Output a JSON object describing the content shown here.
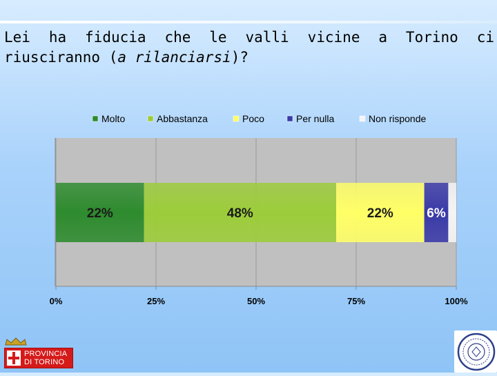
{
  "slide": {
    "title_part1": "Lei ha fiducia che le valli vicine a Torino ci riusciranno (",
    "title_italic": "a rilanciarsi",
    "title_part2": ")?"
  },
  "logo": {
    "line1": "PROVINCIA",
    "line2": "DI TORINO"
  },
  "chart_data": {
    "type": "bar",
    "orientation": "horizontal-stacked-100",
    "title": "",
    "xlabel": "",
    "ylabel": "",
    "xlim": [
      0,
      100
    ],
    "x_ticks": [
      "0%",
      "25%",
      "50%",
      "75%",
      "100%"
    ],
    "x_tick_values": [
      0,
      25,
      50,
      75,
      100
    ],
    "legend_position": "top",
    "grid": true,
    "categories": [
      ""
    ],
    "series": [
      {
        "name": "Molto",
        "values": [
          22
        ],
        "label": "22%",
        "color": "#2e8b2e"
      },
      {
        "name": "Abbastanza",
        "values": [
          48
        ],
        "label": "48%",
        "color": "#9ccc3a"
      },
      {
        "name": "Poco",
        "values": [
          22
        ],
        "label": "22%",
        "color": "#ffff66"
      },
      {
        "name": "Per nulla",
        "values": [
          6
        ],
        "label": "6%",
        "color": "#3a3aa8"
      },
      {
        "name": "Non risponde",
        "values": [
          2
        ],
        "label": "",
        "color": "#f4f4f4"
      }
    ]
  }
}
